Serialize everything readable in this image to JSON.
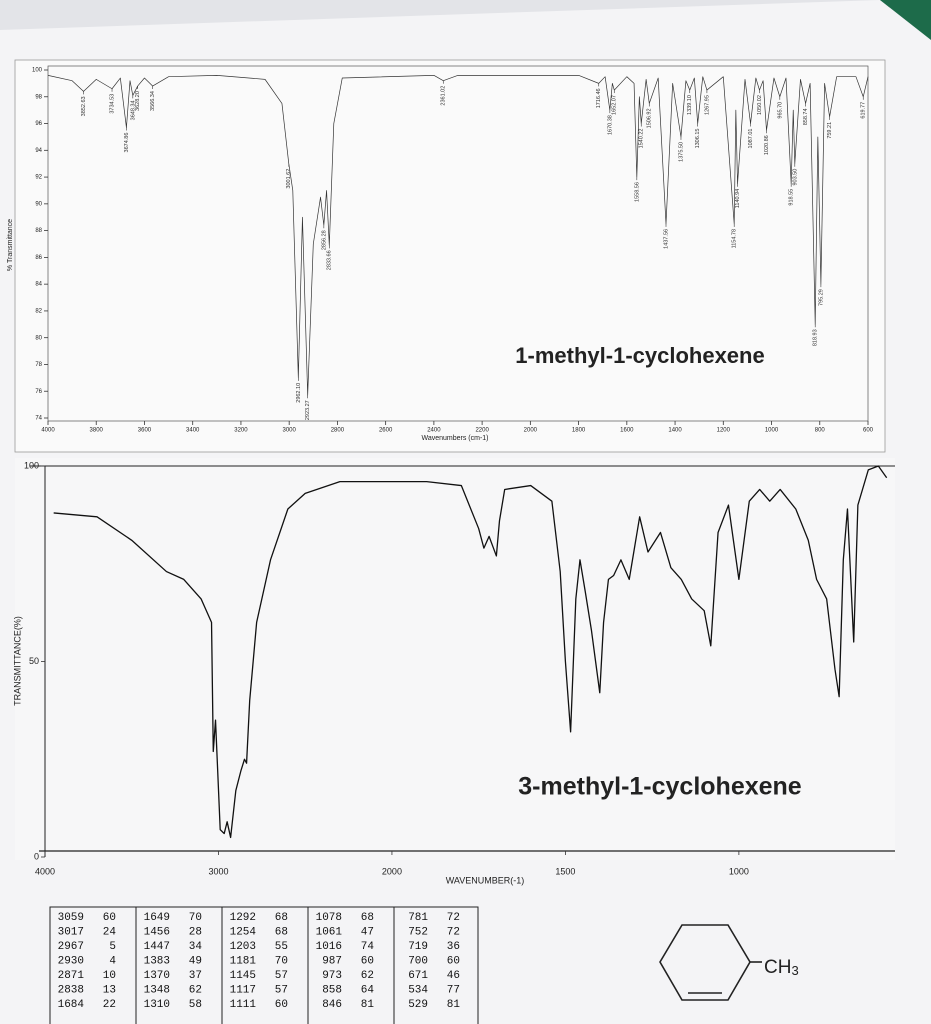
{
  "chart_data": [
    {
      "type": "line",
      "xlabel": "Wavenumbers (cm-1)",
      "ylabel": "% Transmittance",
      "annotation": "1-methyl-1-cyclohexene",
      "xlim": [
        4000,
        600
      ],
      "ylim": [
        74,
        100
      ],
      "xticks": [
        4000,
        3800,
        3600,
        3400,
        3200,
        3000,
        2800,
        2600,
        2400,
        2200,
        2000,
        1800,
        1600,
        1400,
        1200,
        1000,
        800,
        600
      ],
      "yticks": [
        74,
        76,
        78,
        80,
        82,
        84,
        86,
        88,
        90,
        92,
        94,
        96,
        98,
        100
      ],
      "color": "#333333",
      "series": [
        {
          "color": "#333333",
          "x": [
            4000,
            3900,
            3852.63,
            3800,
            3734.53,
            3700,
            3674.86,
            3660,
            3648.34,
            3628.2,
            3600,
            3566.34,
            3500,
            3300,
            3100,
            3030,
            3001.62,
            2985,
            2962.1,
            2945,
            2923.27,
            2900,
            2870,
            2856.28,
            2845,
            2833.66,
            2815,
            2780,
            2400,
            2361.02,
            2300,
            1800,
            1716.46,
            1690,
            1670.38,
            1660,
            1652.07,
            1600,
            1570,
            1558.56,
            1548,
            1540.22,
            1520,
            1506.92,
            1470,
            1437.56,
            1410,
            1375.5,
            1355,
            1339.1,
            1320,
            1306.15,
            1285,
            1267.95,
            1200,
            1154.78,
            1148,
            1140.94,
            1110,
            1087.01,
            1065,
            1050.02,
            1035,
            1020.86,
            990,
            965.7,
            940,
            918.55,
            910,
            903.5,
            880,
            858.74,
            840,
            818.93,
            808,
            795.29,
            780,
            759.21,
            730,
            650,
            619.77,
            600
          ],
          "values": [
            99.6,
            99.2,
            98.4,
            99.3,
            98.6,
            99.4,
            95.7,
            99.2,
            98.1,
            98.8,
            99.4,
            98.8,
            99.5,
            99.6,
            99.3,
            97.5,
            93,
            91,
            77,
            89,
            75.7,
            87,
            90.5,
            88.4,
            91,
            86.9,
            96,
            99.4,
            99.6,
            99.2,
            99.6,
            99.6,
            99,
            99.5,
            97,
            99,
            98.5,
            99.5,
            99,
            92,
            98,
            96,
            99.3,
            97.5,
            99.4,
            88.5,
            99,
            95,
            99.2,
            98.5,
            99.4,
            96,
            99.5,
            98.5,
            99.5,
            88.5,
            97,
            91.5,
            99.3,
            96,
            99.4,
            98.5,
            99.2,
            95.5,
            99.4,
            98,
            99.4,
            91.5,
            97,
            93,
            99.3,
            97.5,
            99,
            81,
            95,
            84,
            99,
            96.5,
            99.5,
            99.5,
            98,
            99.5
          ]
        }
      ],
      "peaks": {
        "x": [
          3852.63,
          3734.53,
          3674.86,
          3648.34,
          3628.2,
          3566.34,
          3001.62,
          2962.1,
          2923.27,
          2856.28,
          2833.66,
          2361.02,
          1716.46,
          1670.38,
          1652.07,
          1558.56,
          1540.22,
          1506.92,
          1437.56,
          1375.5,
          1339.1,
          1306.15,
          1267.95,
          1154.78,
          1140.94,
          1087.01,
          1050.02,
          1020.86,
          965.7,
          918.55,
          903.5,
          858.74,
          818.93,
          795.29,
          759.21,
          619.77
        ],
        "x_labels": [
          "3852.63",
          "3734.53",
          "3674.86",
          "3648.34",
          "3628.20",
          "3566.34",
          "3001.62",
          "2962.10",
          "2923.27",
          "2856.28",
          "2833.66",
          "2361.02",
          "1716.46",
          "1670.38",
          "1652.07",
          "1558.56",
          "1540.22",
          "1506.92",
          "1437.56",
          "1375.50",
          "1339.10",
          "1306.15",
          "1267.95",
          "1154.78",
          "1140.94",
          "1087.01",
          "1050.02",
          "1020.86",
          "965.70",
          "918.55",
          "903.50",
          "858.74",
          "818.93",
          "795.29",
          "759.21",
          "619.77"
        ],
        "values": [
          98.4,
          98.6,
          95.7,
          98.1,
          98.8,
          98.8,
          93,
          77,
          75.7,
          88.4,
          86.9,
          99.2,
          99,
          97,
          98.5,
          92,
          96,
          97.5,
          88.5,
          95,
          98.5,
          96,
          98.5,
          88.5,
          91.5,
          96,
          98.5,
          95.5,
          98,
          91.5,
          93,
          97.5,
          81,
          84,
          96.5,
          98
        ]
      }
    },
    {
      "type": "line",
      "xlabel": "WAVENUMBER(-1)",
      "ylabel": "TRANSMITTANCE(%)",
      "annotation": "3-methyl-1-cyclohexene",
      "xlim": [
        4000,
        550
      ],
      "ylim": [
        0,
        100
      ],
      "xscale": {
        "break": 2000,
        "ratio": 2
      },
      "xticks": [
        4000,
        3000,
        2000,
        1500,
        1000
      ],
      "yticks": [
        0,
        50,
        100
      ],
      "color": "#111111",
      "series": [
        {
          "color": "#111111",
          "x": [
            3950,
            3700,
            3500,
            3300,
            3200,
            3100,
            3080,
            3040,
            3030,
            3017,
            2990,
            2967,
            2950,
            2930,
            2900,
            2871,
            2850,
            2838,
            2820,
            2780,
            2700,
            2600,
            2500,
            2300,
            2100,
            2000,
            1900,
            1800,
            1750,
            1735,
            1720,
            1699,
            1690,
            1675,
            1600,
            1539,
            1515,
            1500,
            1485,
            1470,
            1458,
            1443,
            1425,
            1413,
            1401,
            1390,
            1376,
            1361,
            1340,
            1316,
            1286,
            1262,
            1226,
            1196,
            1166,
            1136,
            1100,
            1081,
            1060,
            1030,
            1000,
            970,
            940,
            911,
            881,
            836,
            800,
            776,
            747,
            723,
            711,
            699,
            687,
            669,
            657,
            627,
            598,
            574
          ],
          "values": [
            88,
            87,
            81,
            73,
            71,
            66,
            64,
            60,
            27,
            35,
            7,
            6,
            9,
            5,
            17,
            22,
            25,
            24,
            40,
            60,
            76,
            89,
            93,
            96,
            96,
            96,
            96,
            95,
            84,
            79,
            82,
            77,
            86,
            94,
            95,
            91,
            73,
            50,
            32,
            66,
            76,
            68,
            58,
            50,
            42,
            60,
            71,
            72,
            76,
            71,
            87,
            78,
            83,
            74,
            71,
            66,
            63,
            54,
            83,
            90,
            71,
            91,
            94,
            91,
            94,
            89,
            81,
            71,
            66,
            48,
            41,
            76,
            89,
            55,
            90,
            99,
            100,
            97
          ]
        }
      ]
    }
  ],
  "table": {
    "rows": [
      [
        3059,
        60,
        1649,
        70,
        1292,
        68,
        1078,
        68,
        781,
        72
      ],
      [
        3017,
        24,
        1456,
        28,
        1254,
        68,
        1061,
        47,
        752,
        72
      ],
      [
        2967,
        5,
        1447,
        34,
        1203,
        55,
        1016,
        74,
        719,
        36
      ],
      [
        2930,
        4,
        1383,
        49,
        1181,
        70,
        987,
        60,
        700,
        60
      ],
      [
        2871,
        10,
        1370,
        37,
        1145,
        57,
        973,
        62,
        671,
        46
      ],
      [
        2838,
        13,
        1348,
        62,
        1117,
        57,
        858,
        64,
        534,
        77
      ],
      [
        1684,
        22,
        1310,
        58,
        1111,
        60,
        846,
        81,
        529,
        81
      ]
    ]
  },
  "structure": {
    "label": [
      "CH",
      "3"
    ]
  }
}
